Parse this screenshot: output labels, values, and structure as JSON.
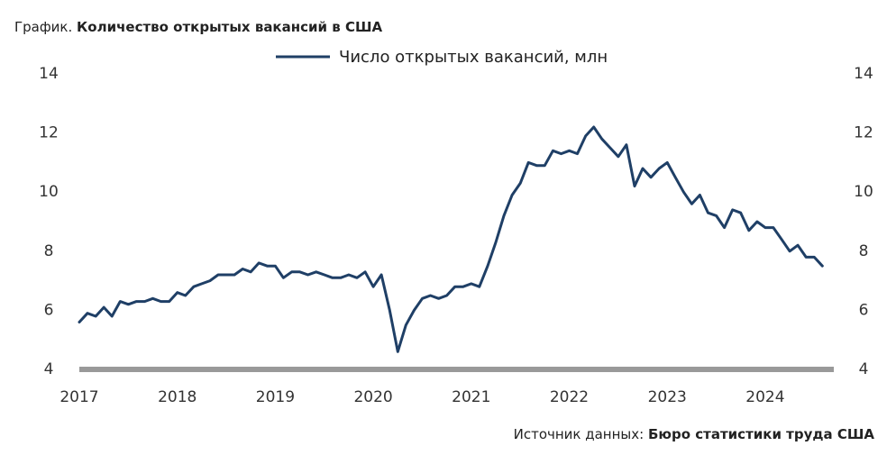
{
  "chart_data": {
    "type": "line",
    "title_prefix": "График.",
    "title": "Количество открытых вакансий в США",
    "source_prefix": "Источник данных:",
    "source": "Бюро статистики труда США",
    "x": [
      2017,
      2017.083,
      2017.167,
      2017.25,
      2017.333,
      2017.417,
      2017.5,
      2017.583,
      2017.667,
      2017.75,
      2017.833,
      2017.917,
      2018,
      2018.083,
      2018.167,
      2018.25,
      2018.333,
      2018.417,
      2018.5,
      2018.583,
      2018.667,
      2018.75,
      2018.833,
      2018.917,
      2019,
      2019.083,
      2019.167,
      2019.25,
      2019.333,
      2019.417,
      2019.5,
      2019.583,
      2019.667,
      2019.75,
      2019.833,
      2019.917,
      2020,
      2020.083,
      2020.167,
      2020.25,
      2020.333,
      2020.417,
      2020.5,
      2020.583,
      2020.667,
      2020.75,
      2020.833,
      2020.917,
      2021,
      2021.083,
      2021.167,
      2021.25,
      2021.333,
      2021.417,
      2021.5,
      2021.583,
      2021.667,
      2021.75,
      2021.833,
      2021.917,
      2022,
      2022.083,
      2022.167,
      2022.25,
      2022.333,
      2022.417,
      2022.5,
      2022.583,
      2022.667,
      2022.75,
      2022.833,
      2022.917,
      2023,
      2023.083,
      2023.167,
      2023.25,
      2023.333,
      2023.417,
      2023.5,
      2023.583,
      2023.667,
      2023.75,
      2023.833,
      2023.917,
      2024,
      2024.083,
      2024.167,
      2024.25,
      2024.333,
      2024.417,
      2024.5,
      2024.583
    ],
    "series": [
      {
        "name": "Число открытых вакансий, млн",
        "color": "#1f3f66",
        "values": [
          5.6,
          5.9,
          5.8,
          6.1,
          5.8,
          6.3,
          6.2,
          6.3,
          6.3,
          6.4,
          6.3,
          6.3,
          6.6,
          6.5,
          6.8,
          6.9,
          7.0,
          7.2,
          7.2,
          7.2,
          7.4,
          7.3,
          7.6,
          7.5,
          7.5,
          7.1,
          7.3,
          7.3,
          7.2,
          7.3,
          7.2,
          7.1,
          7.1,
          7.2,
          7.1,
          7.3,
          6.8,
          7.2,
          6.0,
          4.6,
          5.5,
          6.0,
          6.4,
          6.5,
          6.4,
          6.5,
          6.8,
          6.8,
          6.9,
          6.8,
          7.5,
          8.3,
          9.2,
          9.9,
          10.3,
          11.0,
          10.9,
          10.9,
          11.4,
          11.3,
          11.4,
          11.3,
          11.9,
          12.2,
          11.8,
          11.5,
          11.2,
          11.6,
          10.2,
          10.8,
          10.5,
          10.8,
          11.0,
          10.5,
          10.0,
          9.6,
          9.9,
          9.3,
          9.2,
          8.8,
          9.4,
          9.3,
          8.7,
          9.0,
          8.8,
          8.8,
          8.4,
          8.0,
          8.2,
          7.8,
          7.8,
          7.5
        ]
      }
    ],
    "xlim": [
      2017,
      2024.7
    ],
    "xticks": [
      2017,
      2018,
      2019,
      2020,
      2021,
      2022,
      2023,
      2024
    ],
    "ylim": [
      4,
      14
    ],
    "yticks": [
      4,
      6,
      8,
      10,
      12,
      14
    ],
    "y2lim": [
      4,
      14
    ],
    "y2ticks": [
      4,
      6,
      8,
      10,
      12,
      14
    ],
    "grid": false,
    "legend": "top"
  }
}
